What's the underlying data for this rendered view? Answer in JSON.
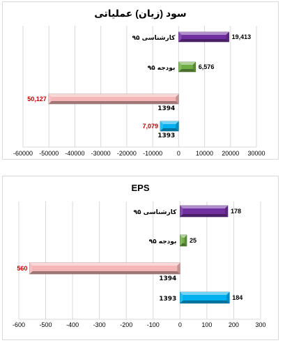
{
  "chart_data": [
    {
      "type": "bar",
      "orientation": "horizontal",
      "title": "سود (زیان) عملیاتی",
      "xlim": [
        -60000,
        30000
      ],
      "ticks": [
        -60000,
        -50000,
        -40000,
        -30000,
        -20000,
        -10000,
        0,
        10000,
        20000,
        30000
      ],
      "grid": true,
      "legend": "none",
      "bars": [
        {
          "category": "کارشناسی ۹۵",
          "value": 19413,
          "label": "19,413",
          "color": "#7030a0",
          "label_color": "#000000"
        },
        {
          "category": "بودجه ۹۵",
          "value": 6576,
          "label": "6,576",
          "color": "#70ad47",
          "label_color": "#000000"
        },
        {
          "category": "1394",
          "value": -50127,
          "label": "50,127",
          "color": "#f4b6b6",
          "label_color": "#c00000"
        },
        {
          "category": "1393",
          "value": -7079,
          "label": "7,079",
          "color": "#00b0f0",
          "label_color": "#c00000"
        }
      ]
    },
    {
      "type": "bar",
      "orientation": "horizontal",
      "title": "EPS",
      "xlim": [
        -600,
        300
      ],
      "ticks": [
        -600,
        -500,
        -400,
        -300,
        -200,
        -100,
        0,
        100,
        200,
        300
      ],
      "grid": true,
      "legend": "none",
      "bars": [
        {
          "category": "کارشناسی ۹۵",
          "value": 178,
          "label": "178",
          "color": "#7030a0",
          "label_color": "#000000"
        },
        {
          "category": "بودجه ۹۵",
          "value": 25,
          "label": "25",
          "color": "#70ad47",
          "label_color": "#000000"
        },
        {
          "category": "1394",
          "value": -560,
          "label": "560",
          "color": "#f4b6b6",
          "label_color": "#c00000"
        },
        {
          "category": "1393",
          "value": 184,
          "label": "184",
          "color": "#00b0f0",
          "label_color": "#000000"
        }
      ]
    }
  ]
}
